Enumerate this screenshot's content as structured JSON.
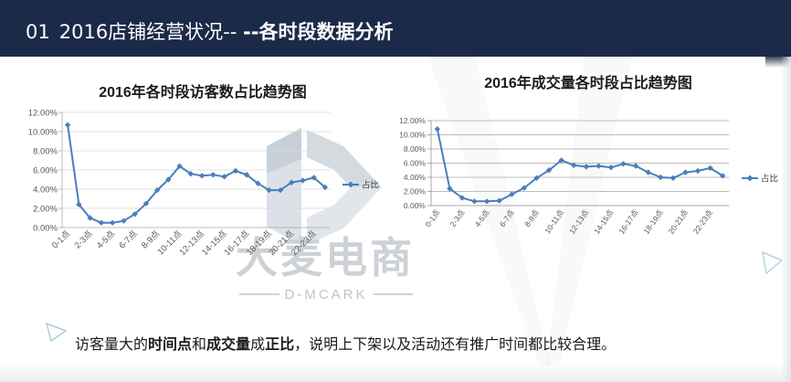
{
  "theme": {
    "header_bg": "#1b2a48"
  },
  "header": {
    "number": "01",
    "title_main": "2016店铺经营状况-- ",
    "title_sub": "--各时段数据分析"
  },
  "chart_data": [
    {
      "type": "line",
      "title": "2016年各时段访客数占比趋势图",
      "categories": [
        "0-1点",
        "",
        "2-3点",
        "",
        "4-5点",
        "",
        "6-7点",
        "",
        "8-9点",
        "",
        "10-11点",
        "",
        "12-13点",
        "",
        "14-15点",
        "",
        "16-17点",
        "",
        "18-19点",
        "",
        "20-21点",
        "",
        "22-23点",
        ""
      ],
      "yticks": [
        0,
        2,
        4,
        6,
        8,
        10,
        12
      ],
      "ytick_labels": [
        "0.00%",
        "2.00%",
        "4.00%",
        "6.00%",
        "8.00%",
        "10.00%",
        "12.00%"
      ],
      "ylim": [
        0,
        12
      ],
      "grid": true,
      "legend": "right",
      "series": [
        {
          "name": "占比",
          "color": "#4a7ebb",
          "values": [
            10.7,
            2.4,
            1.0,
            0.5,
            0.5,
            0.7,
            1.4,
            2.5,
            3.9,
            5.0,
            6.4,
            5.6,
            5.4,
            5.5,
            5.3,
            5.9,
            5.5,
            4.6,
            3.9,
            3.9,
            4.7,
            4.9,
            5.2,
            4.2
          ]
        }
      ]
    },
    {
      "type": "line",
      "title": "2016年成交量各时段占比趋势图",
      "categories": [
        "0-1点",
        "",
        "2-3点",
        "",
        "4-5点",
        "",
        "6-7点",
        "",
        "8-9点",
        "",
        "10-11点",
        "",
        "12-13点",
        "",
        "14-15点",
        "",
        "16-17点",
        "",
        "18-19点",
        "",
        "20-21点",
        "",
        "22-23点",
        ""
      ],
      "yticks": [
        0,
        2,
        4,
        6,
        8,
        10,
        12
      ],
      "ytick_labels": [
        "0.00%",
        "2.00%",
        "4.00%",
        "6.00%",
        "8.00%",
        "10.00%",
        "12.00%"
      ],
      "ylim": [
        0,
        12
      ],
      "grid": true,
      "legend": "right",
      "series": [
        {
          "name": "占比",
          "color": "#4a7ebb",
          "values": [
            10.8,
            2.4,
            1.1,
            0.6,
            0.6,
            0.7,
            1.6,
            2.5,
            3.9,
            5.0,
            6.4,
            5.7,
            5.5,
            5.6,
            5.4,
            5.9,
            5.6,
            4.7,
            4.0,
            3.9,
            4.7,
            4.9,
            5.3,
            4.2
          ]
        }
      ]
    }
  ],
  "watermark": {
    "brand": "大麦电商",
    "brand_latin": "D-MCARK"
  },
  "conclusion": [
    "访客量大的",
    "时间点",
    "和",
    "成交量",
    "成",
    "正比",
    "，说明上下架以及活动还有推广时间都比较合理。"
  ]
}
